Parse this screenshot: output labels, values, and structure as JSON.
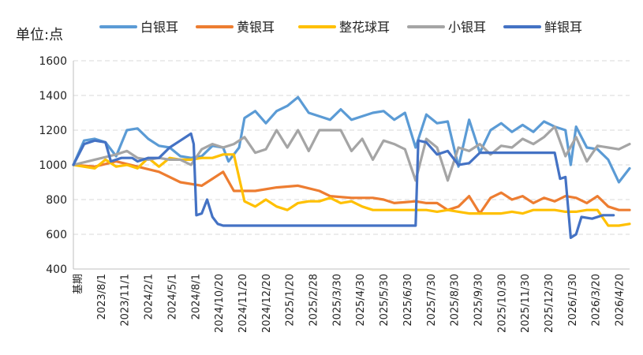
{
  "chart_data": {
    "type": "line",
    "unit_label": "单位:点",
    "ylim": [
      400,
      1600
    ],
    "yticks": [
      400,
      600,
      800,
      1000,
      1200,
      1400,
      1600
    ],
    "grid": true,
    "legend_position": "top",
    "x_tick_labels": [
      "基期",
      "2023/8/1",
      "2023/11/1",
      "2024/2/1",
      "2024/5/1",
      "2024/8/1",
      "2024/10/20",
      "2024/11/20",
      "2024/12/20",
      "2025/1/20",
      "2025/2/28",
      "2025/3/30",
      "2025/4/30",
      "2025/5/30",
      "2025/6/30",
      "2025/7/30",
      "2025/8/30",
      "2025/9/30",
      "2025/10/30",
      "2025/11/30",
      "2025/12/30",
      "2026/1/30",
      "2026/3/20",
      "2026/4/20"
    ],
    "n_points": 96,
    "series": [
      {
        "name": "白银耳",
        "color": "#5B9BD5",
        "points": [
          [
            0,
            1000
          ],
          [
            2,
            1140
          ],
          [
            4,
            1150
          ],
          [
            6,
            1130
          ],
          [
            8,
            1050
          ],
          [
            10,
            1200
          ],
          [
            12,
            1210
          ],
          [
            14,
            1150
          ],
          [
            16,
            1110
          ],
          [
            18,
            1100
          ],
          [
            20,
            1050
          ],
          [
            22,
            1040
          ],
          [
            24,
            1050
          ],
          [
            26,
            1110
          ],
          [
            28,
            1100
          ],
          [
            29,
            1020
          ],
          [
            31,
            1100
          ],
          [
            32,
            1270
          ],
          [
            34,
            1310
          ],
          [
            36,
            1240
          ],
          [
            38,
            1310
          ],
          [
            40,
            1340
          ],
          [
            42,
            1390
          ],
          [
            44,
            1300
          ],
          [
            46,
            1280
          ],
          [
            48,
            1260
          ],
          [
            50,
            1320
          ],
          [
            52,
            1260
          ],
          [
            54,
            1280
          ],
          [
            56,
            1300
          ],
          [
            58,
            1310
          ],
          [
            60,
            1260
          ],
          [
            62,
            1300
          ],
          [
            64,
            1100
          ],
          [
            66,
            1290
          ],
          [
            68,
            1240
          ],
          [
            70,
            1250
          ],
          [
            72,
            990
          ],
          [
            74,
            1260
          ],
          [
            76,
            1070
          ],
          [
            78,
            1200
          ],
          [
            80,
            1240
          ],
          [
            82,
            1190
          ],
          [
            84,
            1230
          ],
          [
            86,
            1190
          ],
          [
            88,
            1250
          ],
          [
            90,
            1220
          ],
          [
            92,
            1200
          ],
          [
            93,
            1000
          ],
          [
            94,
            1220
          ],
          [
            96,
            1100
          ],
          [
            98,
            1090
          ],
          [
            100,
            1030
          ],
          [
            102,
            900
          ],
          [
            104,
            980
          ]
        ]
      },
      {
        "name": "黄银耳",
        "color": "#ED7D31",
        "points": [
          [
            0,
            1000
          ],
          [
            4,
            990
          ],
          [
            8,
            1020
          ],
          [
            12,
            990
          ],
          [
            16,
            960
          ],
          [
            20,
            900
          ],
          [
            24,
            880
          ],
          [
            26,
            920
          ],
          [
            28,
            960
          ],
          [
            30,
            850
          ],
          [
            34,
            850
          ],
          [
            38,
            870
          ],
          [
            42,
            880
          ],
          [
            46,
            850
          ],
          [
            48,
            820
          ],
          [
            52,
            810
          ],
          [
            56,
            810
          ],
          [
            58,
            800
          ],
          [
            60,
            780
          ],
          [
            64,
            790
          ],
          [
            66,
            780
          ],
          [
            68,
            780
          ],
          [
            70,
            740
          ],
          [
            72,
            760
          ],
          [
            74,
            820
          ],
          [
            76,
            720
          ],
          [
            78,
            810
          ],
          [
            80,
            840
          ],
          [
            82,
            800
          ],
          [
            84,
            820
          ],
          [
            86,
            780
          ],
          [
            88,
            810
          ],
          [
            90,
            790
          ],
          [
            92,
            820
          ],
          [
            94,
            810
          ],
          [
            96,
            780
          ],
          [
            98,
            820
          ],
          [
            100,
            760
          ],
          [
            102,
            740
          ],
          [
            104,
            740
          ]
        ]
      },
      {
        "name": "整花球耳",
        "color": "#FFC000",
        "points": [
          [
            0,
            1000
          ],
          [
            4,
            980
          ],
          [
            6,
            1030
          ],
          [
            8,
            990
          ],
          [
            10,
            1000
          ],
          [
            12,
            980
          ],
          [
            14,
            1040
          ],
          [
            16,
            990
          ],
          [
            18,
            1040
          ],
          [
            20,
            1030
          ],
          [
            22,
            1030
          ],
          [
            24,
            1040
          ],
          [
            26,
            1040
          ],
          [
            28,
            1060
          ],
          [
            30,
            1060
          ],
          [
            32,
            790
          ],
          [
            34,
            760
          ],
          [
            36,
            800
          ],
          [
            38,
            760
          ],
          [
            40,
            740
          ],
          [
            42,
            780
          ],
          [
            44,
            790
          ],
          [
            46,
            790
          ],
          [
            48,
            810
          ],
          [
            50,
            780
          ],
          [
            52,
            790
          ],
          [
            54,
            760
          ],
          [
            56,
            740
          ],
          [
            58,
            740
          ],
          [
            60,
            740
          ],
          [
            62,
            740
          ],
          [
            64,
            740
          ],
          [
            66,
            740
          ],
          [
            68,
            730
          ],
          [
            70,
            740
          ],
          [
            72,
            730
          ],
          [
            74,
            720
          ],
          [
            76,
            720
          ],
          [
            78,
            720
          ],
          [
            80,
            720
          ],
          [
            82,
            730
          ],
          [
            84,
            720
          ],
          [
            86,
            740
          ],
          [
            88,
            740
          ],
          [
            90,
            740
          ],
          [
            92,
            730
          ],
          [
            94,
            730
          ],
          [
            96,
            740
          ],
          [
            98,
            740
          ],
          [
            100,
            650
          ],
          [
            102,
            650
          ],
          [
            104,
            660
          ]
        ]
      },
      {
        "name": "小银耳",
        "color": "#A5A5A5",
        "points": [
          [
            0,
            1000
          ],
          [
            4,
            1030
          ],
          [
            8,
            1060
          ],
          [
            10,
            1080
          ],
          [
            12,
            1040
          ],
          [
            14,
            1030
          ],
          [
            16,
            1040
          ],
          [
            18,
            1030
          ],
          [
            20,
            1030
          ],
          [
            22,
            1000
          ],
          [
            24,
            1090
          ],
          [
            26,
            1120
          ],
          [
            28,
            1100
          ],
          [
            30,
            1120
          ],
          [
            32,
            1160
          ],
          [
            34,
            1070
          ],
          [
            36,
            1090
          ],
          [
            38,
            1200
          ],
          [
            40,
            1100
          ],
          [
            42,
            1200
          ],
          [
            44,
            1080
          ],
          [
            46,
            1200
          ],
          [
            48,
            1200
          ],
          [
            50,
            1200
          ],
          [
            52,
            1080
          ],
          [
            54,
            1150
          ],
          [
            56,
            1030
          ],
          [
            58,
            1140
          ],
          [
            60,
            1120
          ],
          [
            62,
            1090
          ],
          [
            64,
            910
          ],
          [
            66,
            1150
          ],
          [
            68,
            1100
          ],
          [
            70,
            910
          ],
          [
            72,
            1100
          ],
          [
            74,
            1080
          ],
          [
            76,
            1120
          ],
          [
            78,
            1060
          ],
          [
            80,
            1110
          ],
          [
            82,
            1100
          ],
          [
            84,
            1150
          ],
          [
            86,
            1120
          ],
          [
            88,
            1160
          ],
          [
            90,
            1220
          ],
          [
            92,
            1050
          ],
          [
            94,
            1160
          ],
          [
            96,
            1020
          ],
          [
            98,
            1110
          ],
          [
            100,
            1100
          ],
          [
            102,
            1090
          ],
          [
            104,
            1120
          ]
        ]
      },
      {
        "name": "鲜银耳",
        "color": "#4472C4",
        "points": [
          [
            0,
            1000
          ],
          [
            2,
            1120
          ],
          [
            4,
            1140
          ],
          [
            6,
            1130
          ],
          [
            7,
            1020
          ],
          [
            9,
            1040
          ],
          [
            11,
            1040
          ],
          [
            12,
            1020
          ],
          [
            14,
            1040
          ],
          [
            16,
            1040
          ],
          [
            18,
            1100
          ],
          [
            20,
            1140
          ],
          [
            22,
            1180
          ],
          [
            22.5,
            1120
          ],
          [
            23,
            710
          ],
          [
            24,
            720
          ],
          [
            25,
            800
          ],
          [
            26,
            700
          ],
          [
            27,
            660
          ],
          [
            28,
            650
          ],
          [
            30,
            650
          ],
          [
            60,
            650
          ],
          [
            64,
            650
          ],
          [
            64.5,
            1140
          ],
          [
            66,
            1130
          ],
          [
            68,
            1060
          ],
          [
            70,
            1080
          ],
          [
            72,
            1000
          ],
          [
            74,
            1010
          ],
          [
            76,
            1070
          ],
          [
            78,
            1070
          ],
          [
            82,
            1070
          ],
          [
            88,
            1070
          ],
          [
            90,
            1070
          ],
          [
            91,
            920
          ],
          [
            92,
            930
          ],
          [
            93,
            580
          ],
          [
            94,
            600
          ],
          [
            95,
            700
          ],
          [
            97,
            690
          ],
          [
            99,
            710
          ],
          [
            101,
            710
          ]
        ]
      }
    ]
  }
}
